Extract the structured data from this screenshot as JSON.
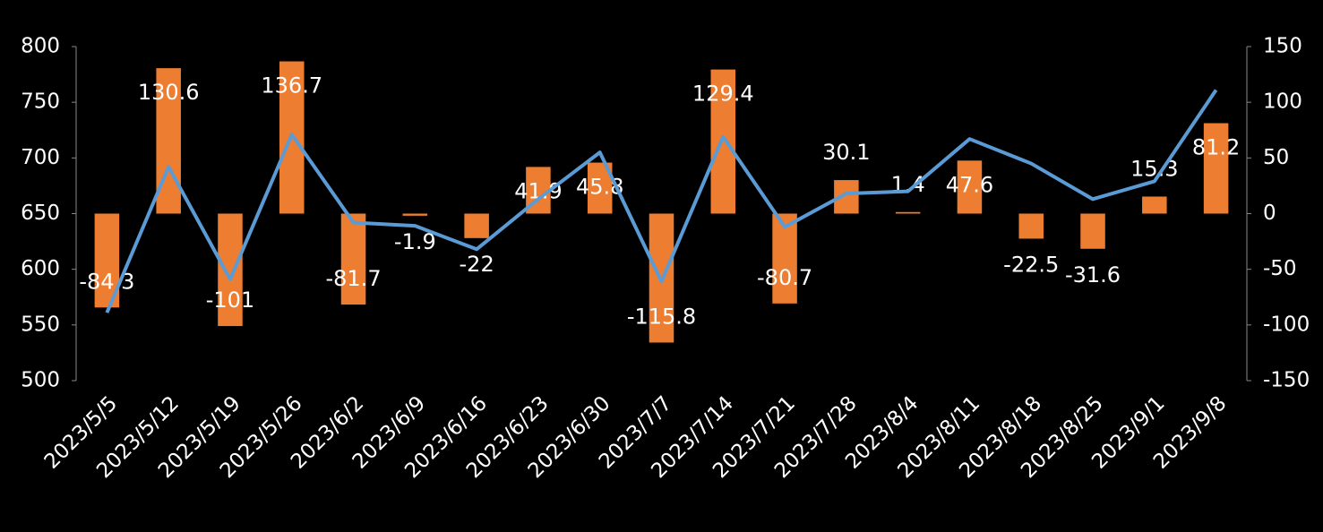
{
  "chart_data": {
    "type": "bar-line",
    "categories": [
      "2023/5/5",
      "2023/5/12",
      "2023/5/19",
      "2023/5/26",
      "2023/6/2",
      "2023/6/9",
      "2023/6/16",
      "2023/6/23",
      "2023/6/30",
      "2023/7/7",
      "2023/7/14",
      "2023/7/21",
      "2023/7/28",
      "2023/8/4",
      "2023/8/11",
      "2023/8/18",
      "2023/8/25",
      "2023/9/1",
      "2023/9/8"
    ],
    "series": [
      {
        "type": "bar",
        "axis": "y2",
        "color": "#ED7D31",
        "values": [
          -84.3,
          130.6,
          -101,
          136.7,
          -81.7,
          -1.9,
          -22,
          41.9,
          45.8,
          -115.8,
          129.4,
          -80.7,
          30.1,
          1.4,
          47.6,
          -22.5,
          -31.6,
          15.3,
          81.2
        ]
      },
      {
        "type": "line",
        "axis": "y",
        "color": "#5B9BD5",
        "values": [
          561,
          692,
          591,
          721,
          642,
          639,
          618,
          663,
          705,
          589,
          719,
          638,
          668,
          670,
          717,
          695,
          663,
          679,
          761
        ]
      }
    ],
    "ylim": [
      500,
      800
    ],
    "yticks": [
      500,
      550,
      600,
      650,
      700,
      750,
      800
    ],
    "y2lim": [
      -150,
      150
    ],
    "y2ticks": [
      -150,
      -100,
      -50,
      0,
      50,
      100,
      150
    ]
  }
}
